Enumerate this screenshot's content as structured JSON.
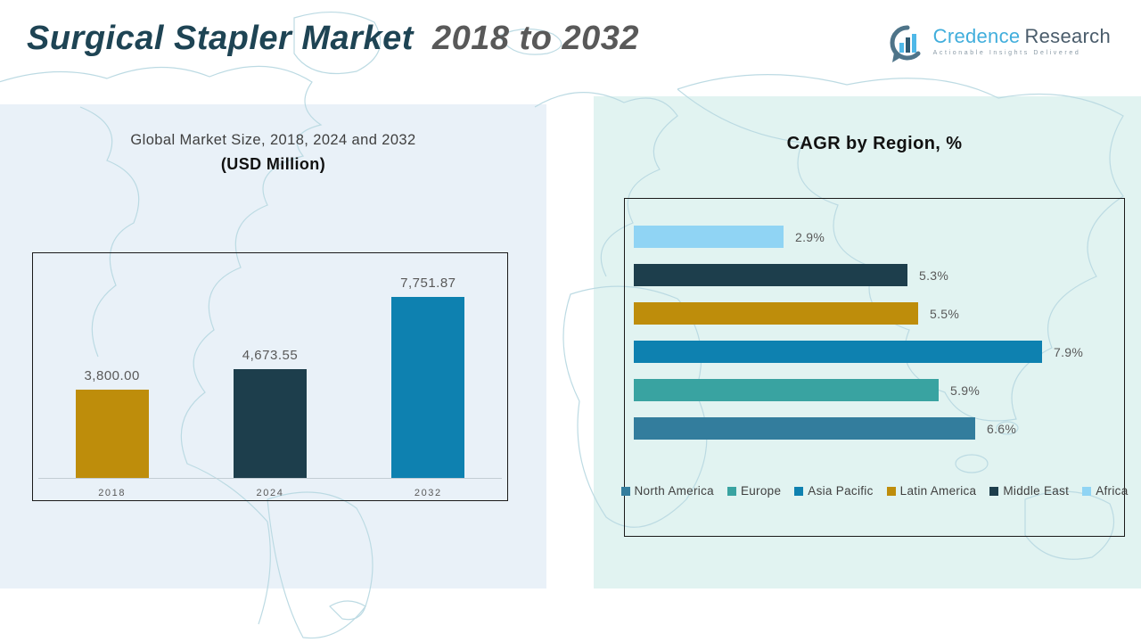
{
  "header": {
    "title_main": "Surgical Stapler Market",
    "title_range": "2018 to 2032",
    "logo": {
      "name_part1": "Credence",
      "name_part2": "Research",
      "tagline": "Actionable Insights Delivered"
    }
  },
  "colors": {
    "panel_left": "#E9F1F8",
    "panel_right": "#E1F3F1",
    "title_main": "#1E4454",
    "title_range": "#595959",
    "map_line": "#B9D9E2"
  },
  "chart_data": [
    {
      "type": "bar",
      "title": "Global Market Size, 2018, 2024 and 2032",
      "subtitle": "(USD Million)",
      "categories": [
        "2018",
        "2024",
        "2032"
      ],
      "values": [
        3800.0,
        4673.55,
        7751.87
      ],
      "value_labels": [
        "3,800.00",
        "4,673.55",
        "7,751.87"
      ],
      "bar_colors": [
        "#BE8D0B",
        "#1D3E4C",
        "#0E81B0"
      ],
      "xlabel": "",
      "ylabel": "",
      "ylim": [
        0,
        7751.87
      ],
      "grid": false,
      "legend_position": "none"
    },
    {
      "type": "bar-horizontal",
      "title": "CAGR by Region, %",
      "categories": [
        "Africa",
        "Middle East",
        "Latin America",
        "Asia Pacific",
        "Europe",
        "North America"
      ],
      "values": [
        2.9,
        5.3,
        5.5,
        7.9,
        5.9,
        6.6
      ],
      "value_labels": [
        "2.9%",
        "5.3%",
        "5.5%",
        "7.9%",
        "5.9%",
        "6.6%"
      ],
      "bar_colors": [
        "#90D4F4",
        "#1D3E4C",
        "#BE8D0B",
        "#0E81B0",
        "#39A3A1",
        "#337D9D"
      ],
      "xlabel": "",
      "ylabel": "",
      "xlim": [
        0,
        8.6
      ],
      "grid": false,
      "legend_position": "bottom",
      "legend": [
        {
          "label": "North America",
          "color": "#337D9D"
        },
        {
          "label": "Europe",
          "color": "#39A3A1"
        },
        {
          "label": "Asia Pacific",
          "color": "#0E81B0"
        },
        {
          "label": "Latin America",
          "color": "#BE8D0B"
        },
        {
          "label": "Middle East",
          "color": "#1D3E4C"
        },
        {
          "label": "Africa",
          "color": "#90D4F4"
        }
      ]
    }
  ]
}
